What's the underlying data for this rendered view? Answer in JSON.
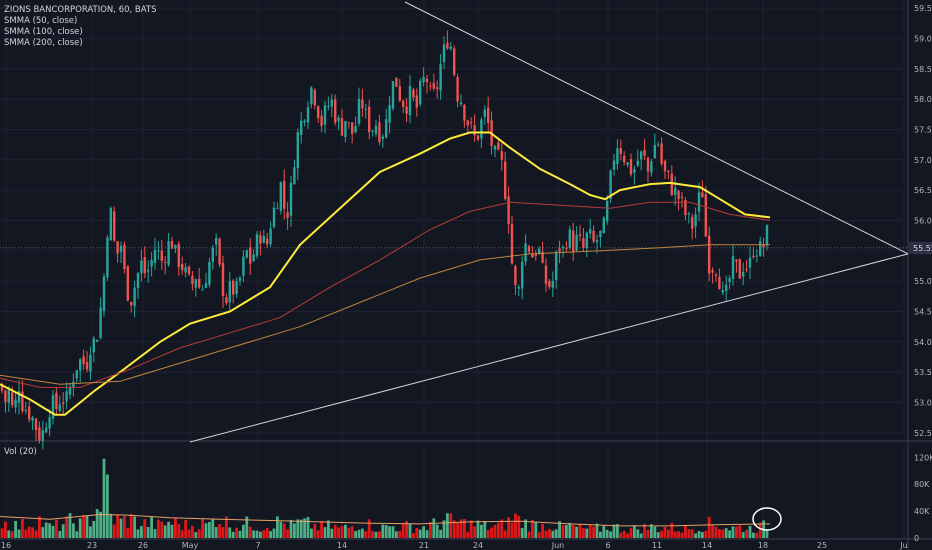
{
  "legend": {
    "title": "ZIONS BANCORPORATION, 60, BATS",
    "indicators": [
      "SMMA (50, close)",
      "SMMA (100, close)",
      "SMMA (200, close)"
    ],
    "volume": "Vol (20)"
  },
  "colors": {
    "background": "#131722",
    "up": "#26a69a",
    "down": "#ef5350",
    "vol_up": "#4caf85",
    "vol_down": "#e21818",
    "smma50": "#ffeb3b",
    "smma100": "#b83a3a",
    "smma200": "#c2853a",
    "trendline": "#d1d4dc",
    "price_label": "#2b3045"
  },
  "chart_data": [
    {
      "type": "candlestick",
      "title": "ZIONS BANCORPORATION, 60, BATS",
      "timeframe": "60",
      "x_ticks": [
        "16",
        "23",
        "26",
        "May",
        "7",
        "14",
        "21",
        "24",
        "Jun",
        "6",
        "11",
        "14",
        "18",
        "25",
        "Ju"
      ],
      "y_ticks": [
        "59.50",
        "59.00",
        "58.50",
        "58.00",
        "57.50",
        "57.00",
        "56.50",
        "56.00",
        "55.50",
        "55.00",
        "54.50",
        "54.00",
        "53.50",
        "53.00",
        "52.50"
      ],
      "ylim": [
        52.35,
        59.6
      ],
      "current_price_label": "55.55",
      "close_path": [
        [
          0,
          53.3
        ],
        [
          6,
          53.0
        ],
        [
          9,
          53.2
        ],
        [
          12,
          52.9
        ],
        [
          16,
          53.0
        ],
        [
          19,
          53.3
        ],
        [
          22,
          53.0
        ],
        [
          26,
          52.9
        ],
        [
          31,
          52.8
        ],
        [
          36,
          52.6
        ],
        [
          41,
          52.4
        ],
        [
          46,
          52.7
        ],
        [
          51,
          53.0
        ],
        [
          56,
          52.9
        ],
        [
          61,
          53.1
        ],
        [
          66,
          53.0
        ],
        [
          71,
          53.3
        ],
        [
          76,
          53.6
        ],
        [
          81,
          53.7
        ],
        [
          86,
          53.6
        ],
        [
          91,
          54.0
        ],
        [
          96,
          54.0
        ],
        [
          101,
          54.6
        ],
        [
          106,
          55.4
        ],
        [
          109,
          56.4
        ],
        [
          112,
          55.9
        ],
        [
          116,
          55.4
        ],
        [
          121,
          55.6
        ],
        [
          126,
          54.9
        ],
        [
          131,
          54.7
        ],
        [
          136,
          55.0
        ],
        [
          141,
          55.3
        ],
        [
          146,
          55.1
        ],
        [
          151,
          55.3
        ],
        [
          156,
          55.6
        ],
        [
          161,
          55.3
        ],
        [
          166,
          55.5
        ],
        [
          171,
          55.7
        ],
        [
          176,
          55.4
        ],
        [
          181,
          55.3
        ],
        [
          186,
          55.1
        ],
        [
          191,
          54.9
        ],
        [
          196,
          55.1
        ],
        [
          201,
          54.8
        ],
        [
          206,
          55.1
        ],
        [
          211,
          55.4
        ],
        [
          216,
          55.6
        ],
        [
          221,
          55.0
        ],
        [
          226,
          54.7
        ],
        [
          231,
          54.9
        ],
        [
          236,
          54.8
        ],
        [
          241,
          55.1
        ],
        [
          246,
          55.5
        ],
        [
          251,
          55.3
        ],
        [
          256,
          55.6
        ],
        [
          261,
          55.8
        ],
        [
          266,
          55.5
        ],
        [
          271,
          56.0
        ],
        [
          276,
          56.3
        ],
        [
          281,
          56.6
        ],
        [
          286,
          56.0
        ],
        [
          291,
          56.5
        ],
        [
          296,
          57.3
        ],
        [
          301,
          57.6
        ],
        [
          306,
          57.9
        ],
        [
          311,
          58.2
        ],
        [
          316,
          58.0
        ],
        [
          321,
          57.6
        ],
        [
          326,
          57.8
        ],
        [
          331,
          58.0
        ],
        [
          336,
          57.7
        ],
        [
          341,
          57.5
        ],
        [
          346,
          57.7
        ],
        [
          351,
          57.4
        ],
        [
          356,
          57.6
        ],
        [
          361,
          58.0
        ],
        [
          366,
          57.7
        ],
        [
          371,
          57.5
        ],
        [
          376,
          57.6
        ],
        [
          381,
          57.4
        ],
        [
          386,
          57.6
        ],
        [
          391,
          58.2
        ],
        [
          396,
          58.3
        ],
        [
          401,
          58.0
        ],
        [
          406,
          57.9
        ],
        [
          411,
          58.1
        ],
        [
          416,
          57.8
        ],
        [
          421,
          58.2
        ],
        [
          426,
          58.4
        ],
        [
          431,
          58.0
        ],
        [
          436,
          58.1
        ],
        [
          441,
          58.6
        ],
        [
          446,
          58.9
        ],
        [
          449,
          59.1
        ],
        [
          453,
          58.6
        ],
        [
          457,
          58.1
        ],
        [
          461,
          58.0
        ],
        [
          466,
          57.7
        ],
        [
          471,
          57.5
        ],
        [
          476,
          57.3
        ],
        [
          481,
          57.6
        ],
        [
          486,
          57.8
        ],
        [
          491,
          57.3
        ],
        [
          496,
          57.0
        ],
        [
          501,
          57.0
        ],
        [
          506,
          56.4
        ],
        [
          510,
          55.9
        ],
        [
          513,
          55.0
        ],
        [
          518,
          54.7
        ],
        [
          523,
          55.6
        ],
        [
          528,
          55.6
        ],
        [
          533,
          55.4
        ],
        [
          538,
          55.6
        ],
        [
          543,
          55.1
        ],
        [
          548,
          54.9
        ],
        [
          553,
          55.0
        ],
        [
          558,
          55.6
        ],
        [
          563,
          55.5
        ],
        [
          568,
          55.8
        ],
        [
          573,
          55.6
        ],
        [
          578,
          55.7
        ],
        [
          583,
          55.5
        ],
        [
          588,
          55.8
        ],
        [
          593,
          55.6
        ],
        [
          598,
          55.7
        ],
        [
          603,
          55.8
        ],
        [
          608,
          56.3
        ],
        [
          613,
          57.0
        ],
        [
          618,
          57.3
        ],
        [
          623,
          57.1
        ],
        [
          628,
          56.9
        ],
        [
          633,
          56.8
        ],
        [
          638,
          57.0
        ],
        [
          643,
          57.1
        ],
        [
          648,
          56.8
        ],
        [
          653,
          57.2
        ],
        [
          658,
          57.3
        ],
        [
          663,
          56.8
        ],
        [
          668,
          56.7
        ],
        [
          673,
          56.5
        ],
        [
          678,
          56.4
        ],
        [
          683,
          56.2
        ],
        [
          688,
          56.0
        ],
        [
          693,
          55.9
        ],
        [
          698,
          56.3
        ],
        [
          703,
          56.5
        ],
        [
          706,
          55.7
        ],
        [
          710,
          55.2
        ],
        [
          715,
          55.3
        ],
        [
          720,
          55.0
        ],
        [
          724,
          54.6
        ],
        [
          729,
          55.0
        ],
        [
          734,
          55.3
        ],
        [
          739,
          55.1
        ],
        [
          744,
          55.3
        ],
        [
          749,
          55.2
        ],
        [
          754,
          55.6
        ],
        [
          759,
          55.5
        ],
        [
          764,
          55.6
        ],
        [
          769,
          55.9
        ]
      ],
      "series": [
        {
          "name": "SMMA (50, close)",
          "points": [
            [
              0,
              53.3
            ],
            [
              30,
              53.05
            ],
            [
              55,
              52.8
            ],
            [
              65,
              52.8
            ],
            [
              80,
              53.0
            ],
            [
              95,
              53.2
            ],
            [
              120,
              53.5
            ],
            [
              160,
              54.0
            ],
            [
              190,
              54.3
            ],
            [
              230,
              54.5
            ],
            [
              270,
              54.9
            ],
            [
              300,
              55.6
            ],
            [
              340,
              56.2
            ],
            [
              380,
              56.8
            ],
            [
              420,
              57.1
            ],
            [
              450,
              57.35
            ],
            [
              470,
              57.45
            ],
            [
              490,
              57.45
            ],
            [
              510,
              57.2
            ],
            [
              540,
              56.85
            ],
            [
              570,
              56.6
            ],
            [
              590,
              56.42
            ],
            [
              605,
              56.35
            ],
            [
              620,
              56.5
            ],
            [
              650,
              56.6
            ],
            [
              670,
              56.62
            ],
            [
              700,
              56.55
            ],
            [
              720,
              56.35
            ],
            [
              745,
              56.1
            ],
            [
              770,
              56.05
            ]
          ]
        },
        {
          "name": "SMMA (100, close)",
          "points": [
            [
              0,
              53.4
            ],
            [
              40,
              53.25
            ],
            [
              80,
              53.25
            ],
            [
              130,
              53.55
            ],
            [
              180,
              53.9
            ],
            [
              230,
              54.15
            ],
            [
              280,
              54.4
            ],
            [
              330,
              54.9
            ],
            [
              380,
              55.35
            ],
            [
              430,
              55.85
            ],
            [
              470,
              56.15
            ],
            [
              510,
              56.3
            ],
            [
              560,
              56.25
            ],
            [
              610,
              56.2
            ],
            [
              650,
              56.3
            ],
            [
              690,
              56.3
            ],
            [
              730,
              56.1
            ],
            [
              770,
              56.0
            ]
          ]
        },
        {
          "name": "SMMA (200, close)",
          "points": [
            [
              0,
              53.45
            ],
            [
              60,
              53.3
            ],
            [
              120,
              53.35
            ],
            [
              180,
              53.65
            ],
            [
              230,
              53.9
            ],
            [
              300,
              54.25
            ],
            [
              360,
              54.65
            ],
            [
              420,
              55.05
            ],
            [
              480,
              55.35
            ],
            [
              530,
              55.45
            ],
            [
              600,
              55.5
            ],
            [
              660,
              55.55
            ],
            [
              710,
              55.6
            ],
            [
              770,
              55.6
            ]
          ]
        }
      ],
      "trendlines": [
        {
          "name": "upper",
          "from": [
            405,
            59.6
          ],
          "to": [
            908,
            55.45
          ]
        },
        {
          "name": "lower",
          "from": [
            190,
            52.35
          ],
          "to": [
            908,
            55.45
          ]
        }
      ]
    },
    {
      "type": "bar",
      "title": "Vol (20)",
      "y_ticks": [
        "120K",
        "80K",
        "40K",
        "0"
      ],
      "ylim": [
        0,
        125000
      ],
      "volume_profile": [
        [
          0,
          30
        ],
        [
          10,
          25
        ],
        [
          20,
          22
        ],
        [
          30,
          28
        ],
        [
          40,
          34
        ],
        [
          45,
          22
        ],
        [
          50,
          20
        ],
        [
          60,
          24
        ],
        [
          70,
          30
        ],
        [
          80,
          26
        ],
        [
          90,
          35
        ],
        [
          100,
          60
        ],
        [
          106,
          125
        ],
        [
          110,
          40
        ],
        [
          120,
          30
        ],
        [
          130,
          35
        ],
        [
          140,
          25
        ],
        [
          150,
          28
        ],
        [
          160,
          22
        ],
        [
          170,
          30
        ],
        [
          180,
          25
        ],
        [
          190,
          22
        ],
        [
          200,
          26
        ],
        [
          210,
          24
        ],
        [
          216,
          40
        ],
        [
          220,
          34
        ],
        [
          230,
          26
        ],
        [
          240,
          22
        ],
        [
          250,
          28
        ],
        [
          260,
          20
        ],
        [
          270,
          25
        ],
        [
          280,
          30
        ],
        [
          290,
          22
        ],
        [
          300,
          28
        ],
        [
          310,
          25
        ],
        [
          320,
          20
        ],
        [
          330,
          22
        ],
        [
          340,
          18
        ],
        [
          350,
          20
        ],
        [
          360,
          28
        ],
        [
          370,
          24
        ],
        [
          380,
          18
        ],
        [
          390,
          22
        ],
        [
          400,
          20
        ],
        [
          410,
          22
        ],
        [
          420,
          18
        ],
        [
          430,
          24
        ],
        [
          440,
          26
        ],
        [
          446,
          38
        ],
        [
          450,
          30
        ],
        [
          460,
          28
        ],
        [
          470,
          25
        ],
        [
          480,
          24
        ],
        [
          490,
          20
        ],
        [
          500,
          22
        ],
        [
          510,
          30
        ],
        [
          515,
          40
        ],
        [
          520,
          30
        ],
        [
          530,
          26
        ],
        [
          540,
          22
        ],
        [
          550,
          25
        ],
        [
          560,
          20
        ],
        [
          570,
          22
        ],
        [
          580,
          18
        ],
        [
          590,
          16
        ],
        [
          600,
          18
        ],
        [
          610,
          22
        ],
        [
          620,
          18
        ],
        [
          630,
          16
        ],
        [
          640,
          18
        ],
        [
          650,
          20
        ],
        [
          660,
          18
        ],
        [
          670,
          20
        ],
        [
          680,
          16
        ],
        [
          690,
          18
        ],
        [
          700,
          20
        ],
        [
          706,
          28
        ],
        [
          710,
          25
        ],
        [
          720,
          24
        ],
        [
          730,
          18
        ],
        [
          740,
          20
        ],
        [
          750,
          18
        ],
        [
          760,
          20
        ],
        [
          770,
          24
        ]
      ],
      "volume_ma_points": [
        [
          0,
          32
        ],
        [
          50,
          28
        ],
        [
          100,
          35
        ],
        [
          130,
          34
        ],
        [
          170,
          30
        ],
        [
          220,
          28
        ],
        [
          270,
          26
        ],
        [
          320,
          24
        ],
        [
          370,
          22
        ],
        [
          420,
          21
        ],
        [
          470,
          24
        ],
        [
          520,
          25
        ],
        [
          570,
          21
        ],
        [
          620,
          18
        ],
        [
          670,
          18
        ],
        [
          720,
          20
        ],
        [
          770,
          21
        ]
      ]
    }
  ]
}
